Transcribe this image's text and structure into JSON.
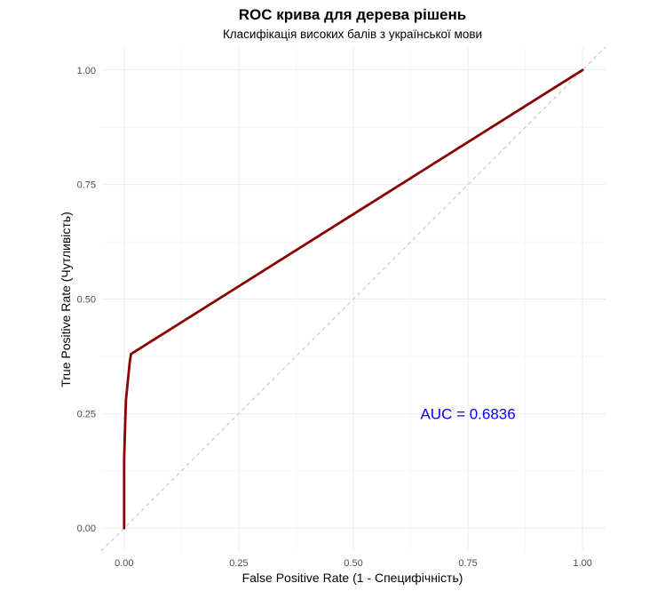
{
  "chart_data": {
    "type": "line",
    "title": "ROC крива для дерева рішень",
    "subtitle": "Класифікація високих балів з української мови",
    "xlabel": "False Positive Rate (1 - Специфічність)",
    "ylabel": "True Positive Rate (Чутливість)",
    "xlim": [
      -0.05,
      1.05
    ],
    "ylim": [
      -0.05,
      1.05
    ],
    "x_ticks": [
      "0.00",
      "0.25",
      "0.50",
      "0.75",
      "1.00"
    ],
    "y_ticks": [
      "0.00",
      "0.25",
      "0.50",
      "0.75",
      "1.00"
    ],
    "grid": true,
    "series": [
      {
        "color": "#8b0000",
        "x": [
          0.0,
          0.0,
          0.002,
          0.004,
          0.008,
          0.012,
          0.015,
          1.0
        ],
        "y": [
          0.0,
          0.15,
          0.22,
          0.28,
          0.32,
          0.36,
          0.38,
          1.0
        ]
      }
    ],
    "reference_line": {
      "x": [
        -0.05,
        1.05
      ],
      "y": [
        -0.05,
        1.05
      ],
      "color": "#bdbdbd",
      "dash": "dashed"
    },
    "annotations": [
      {
        "text": "AUC = 0.6836",
        "x": 0.75,
        "y": 0.25,
        "color": "#0000ff"
      }
    ]
  }
}
